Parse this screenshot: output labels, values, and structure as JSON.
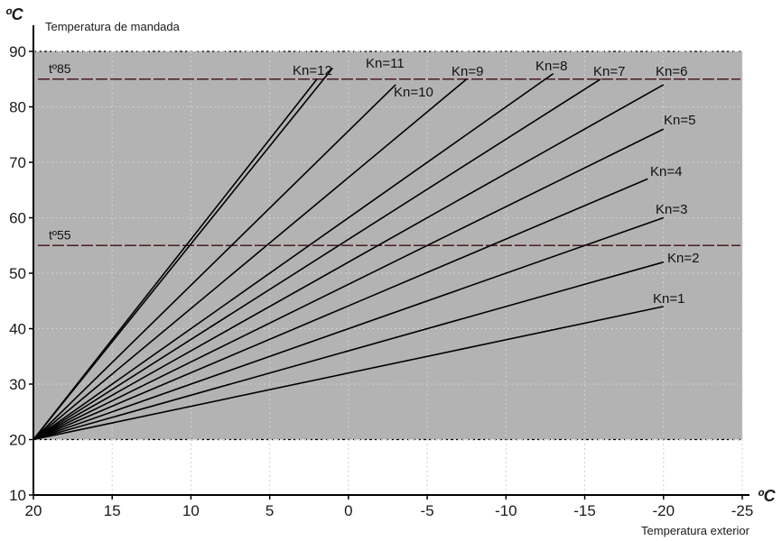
{
  "chart_data": {
    "type": "line",
    "xlabel": "Temperatura exterior",
    "ylabel": "Temperatura de mandada",
    "x_unit": "ºC",
    "y_unit": "ºC",
    "xlim": [
      20,
      -25
    ],
    "ylim": [
      10,
      90
    ],
    "x_ticks": [
      20,
      15,
      10,
      5,
      0,
      -5,
      -10,
      -15,
      -20,
      -25
    ],
    "y_ticks": [
      10,
      20,
      30,
      40,
      50,
      60,
      70,
      80,
      90
    ],
    "grid": true,
    "shaded_band": [
      20,
      90
    ],
    "reference_lines": [
      {
        "label": "tº85",
        "y": 85
      },
      {
        "label": "tº55",
        "y": 55
      }
    ],
    "series": [
      {
        "name": "Kn=1",
        "x": [
          20,
          -20
        ],
        "y": [
          20,
          44
        ]
      },
      {
        "name": "Kn=2",
        "x": [
          20,
          -20
        ],
        "y": [
          20,
          52
        ]
      },
      {
        "name": "Kn=3",
        "x": [
          20,
          -20
        ],
        "y": [
          20,
          60
        ]
      },
      {
        "name": "Kn=4",
        "x": [
          20,
          -19
        ],
        "y": [
          20,
          67
        ]
      },
      {
        "name": "Kn=5",
        "x": [
          20,
          -20
        ],
        "y": [
          20,
          76
        ]
      },
      {
        "name": "Kn=6",
        "x": [
          20,
          -20
        ],
        "y": [
          20,
          84
        ]
      },
      {
        "name": "Kn=7",
        "x": [
          20,
          -16
        ],
        "y": [
          20,
          85
        ]
      },
      {
        "name": "Kn=8",
        "x": [
          20,
          -13
        ],
        "y": [
          20,
          86
        ]
      },
      {
        "name": "Kn=9",
        "x": [
          20,
          -7.5
        ],
        "y": [
          20,
          85
        ]
      },
      {
        "name": "Kn=10",
        "x": [
          20,
          -3
        ],
        "y": [
          20,
          84
        ]
      },
      {
        "name": "Kn=11",
        "x": [
          20,
          1
        ],
        "y": [
          20,
          87
        ]
      },
      {
        "name": "Kn=12",
        "x": [
          20,
          2
        ],
        "y": [
          20,
          85
        ]
      }
    ],
    "colors": {
      "band": "#b3b3b3",
      "curve": "#000000",
      "reference": "#4a1c22",
      "band_edge": "#000000",
      "grid": "#d0d0d0"
    }
  }
}
